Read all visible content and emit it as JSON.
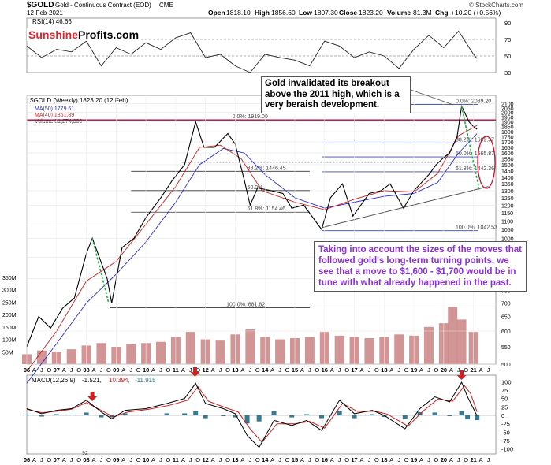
{
  "header": {
    "symbol": "$GOLD",
    "description": "Gold - Continuous Contract (EOD)",
    "exchange": "CME",
    "date": "12-Feb-2021",
    "ohlc_open_label": "Open",
    "ohlc_open": "1818.10",
    "ohlc_high_label": "High",
    "ohlc_high": "1856.60",
    "ohlc_low_label": "Low",
    "ohlc_low": "1807.30",
    "ohlc_close_label": "Close",
    "ohlc_close": "1823.20",
    "ohlc_volume_label": "Volume",
    "ohlc_volume": "81.3M",
    "ohlc_change_label": "Chg",
    "ohlc_change": "+10.20 (+0.56%)",
    "watermark": "© StockCharts.com"
  },
  "logo": {
    "part1": "Sunshine",
    "part2": "Profits.com"
  },
  "legend": {
    "price_title": "$GOLD (Weekly) 1823.20 (12 Feb)",
    "ma50": "MA(50) 1779.61",
    "ma40": "MA(40) 1861.89",
    "volume": "Volume 81,274,800",
    "rsi": "RSI(14) 46.66",
    "macd_label": "MACD(12,26,9)",
    "macd_v1": "-1.521,",
    "macd_v2": "10.394,",
    "macd_v3": "-11.915"
  },
  "annotations": {
    "top_box": "Gold invalidated its breakout above the 2011 high, which is a very beraish development.",
    "purple_box": "Taking into account the sizes of the moves that followed gold's long-term turning points, we see that a move to $1,600 - $1,700 would be in tune with what already happened in the past.",
    "macd_low_mark": "92"
  },
  "colors": {
    "price_line": "#000000",
    "ma50": "#2a2ad0",
    "ma40": "#cc1f1f",
    "resistance": "#b0003a",
    "fib_blue": "#3c4ba8",
    "fib_black": "#333333",
    "volume_bar": "#c98282",
    "volume_bar_dark": "#333333",
    "rsi_line": "#222222",
    "macd_line": "#000000",
    "macd_signal": "#cc1f1f",
    "macd_hist": "#1f6c8a",
    "arrow_red": "#cc2222",
    "green_dotted": "#22aa44",
    "ellipse": "#cc1133",
    "annotation_purple": "#8b2fd6"
  },
  "chart_data": [
    {
      "type": "line",
      "title": "RSI(14) 46.66",
      "y_ticks": [
        "90",
        "70",
        "50",
        "30"
      ],
      "ylim": [
        30,
        90
      ],
      "reference_lines": [
        70,
        50
      ],
      "series": [
        {
          "name": "RSI(14)",
          "x": [
            2006.0,
            2006.5,
            2007.0,
            2007.5,
            2008.0,
            2008.5,
            2009.0,
            2009.5,
            2010.0,
            2010.5,
            2011.0,
            2011.5,
            2012.0,
            2012.5,
            2013.0,
            2013.5,
            2014.0,
            2014.5,
            2015.0,
            2015.5,
            2016.0,
            2016.5,
            2017.0,
            2017.5,
            2018.0,
            2018.5,
            2019.0,
            2019.5,
            2020.0,
            2020.5,
            2021.0,
            2021.12
          ],
          "y": [
            62,
            48,
            58,
            55,
            68,
            38,
            60,
            52,
            66,
            58,
            72,
            78,
            48,
            52,
            38,
            30,
            52,
            48,
            45,
            38,
            68,
            62,
            48,
            55,
            50,
            35,
            58,
            75,
            60,
            80,
            52,
            47
          ]
        }
      ]
    },
    {
      "type": "line",
      "title": "$GOLD (Weekly) 1823.20 (12 Feb)",
      "y_ticks": [
        "2100",
        "2050",
        "2000",
        "1950",
        "1900",
        "1850",
        "1800",
        "1750",
        "1700",
        "1650",
        "1600",
        "1550",
        "1500",
        "1450",
        "1400",
        "1350",
        "1300",
        "1250",
        "1200",
        "1150",
        "1100",
        "1050",
        "1000",
        "950",
        "900",
        "850",
        "800",
        "750",
        "700",
        "650",
        "600",
        "550",
        "500"
      ],
      "y_scale": "log",
      "ylim": [
        500,
        2150
      ],
      "x_ticks": [
        "06",
        "A",
        "J",
        "O",
        "07",
        "A",
        "J",
        "O",
        "08",
        "A",
        "J",
        "O",
        "09",
        "A",
        "J",
        "O",
        "10",
        "A",
        "J",
        "O",
        "11",
        "A",
        "J",
        "O",
        "12",
        "A",
        "J",
        "O",
        "13",
        "A",
        "J",
        "O",
        "14",
        "A",
        "J",
        "O",
        "15",
        "A",
        "J",
        "O",
        "16",
        "A",
        "J",
        "O",
        "17",
        "A",
        "J",
        "O",
        "18",
        "A",
        "J",
        "O",
        "19",
        "A",
        "J",
        "O",
        "20",
        "A",
        "J",
        "O",
        "21",
        "A",
        "J",
        "O"
      ],
      "series": [
        {
          "name": "$GOLD",
          "x": [
            2006.0,
            2006.4,
            2006.8,
            2007.2,
            2007.6,
            2008.0,
            2008.2,
            2008.7,
            2008.85,
            2009.2,
            2009.6,
            2010.0,
            2010.5,
            2010.9,
            2011.3,
            2011.67,
            2011.95,
            2012.3,
            2012.75,
            2013.0,
            2013.3,
            2013.5,
            2013.75,
            2014.2,
            2014.6,
            2014.9,
            2015.3,
            2015.9,
            2016.2,
            2016.6,
            2016.95,
            2017.5,
            2017.9,
            2018.2,
            2018.65,
            2019.0,
            2019.5,
            2019.75,
            2020.0,
            2020.2,
            2020.45,
            2020.6,
            2020.85,
            2021.0,
            2021.12
          ],
          "y": [
            550,
            650,
            610,
            680,
            720,
            920,
            1000,
            800,
            700,
            950,
            1000,
            1120,
            1250,
            1380,
            1500,
            1900,
            1650,
            1650,
            1780,
            1680,
            1380,
            1200,
            1320,
            1300,
            1280,
            1180,
            1200,
            1050,
            1250,
            1350,
            1130,
            1280,
            1300,
            1350,
            1180,
            1300,
            1420,
            1500,
            1560,
            1600,
            1750,
            2070,
            1900,
            1850,
            1823
          ]
        },
        {
          "name": "MA(50) 1779.61",
          "x": [
            2006.0,
            2007.0,
            2008.0,
            2009.0,
            2010.0,
            2011.0,
            2011.8,
            2012.6,
            2013.3,
            2014.0,
            2015.0,
            2016.0,
            2017.0,
            2018.0,
            2019.0,
            2019.8,
            2020.5,
            2021.12
          ],
          "y": [
            450,
            560,
            700,
            820,
            980,
            1220,
            1500,
            1640,
            1600,
            1420,
            1250,
            1180,
            1220,
            1260,
            1280,
            1360,
            1600,
            1780
          ]
        },
        {
          "name": "MA(40) 1861.89",
          "x": [
            2006.0,
            2007.0,
            2008.0,
            2009.0,
            2010.0,
            2011.0,
            2011.8,
            2012.5,
            2013.2,
            2013.9,
            2015.0,
            2016.0,
            2017.0,
            2018.0,
            2019.0,
            2019.8,
            2020.5,
            2021.12
          ],
          "y": [
            480,
            600,
            790,
            880,
            1080,
            1330,
            1650,
            1670,
            1550,
            1300,
            1220,
            1170,
            1240,
            1300,
            1290,
            1430,
            1760,
            1862
          ]
        }
      ],
      "horizontal_levels": [
        {
          "label": "0.0%: 1919.00",
          "value": 1919
        },
        {
          "label": "0.0%: 2089.20",
          "value": 2089.2
        },
        {
          "label": "38.2%: 1689.37",
          "value": 1689.37
        },
        {
          "label": "50.0%: 1565.87",
          "value": 1565.87
        },
        {
          "label": "61.8%: 1442.36",
          "value": 1442.36
        },
        {
          "label": "100.0%: 1042.53",
          "value": 1042.53
        },
        {
          "label": "38.2%: 1446.45",
          "value": 1446.45
        },
        {
          "label": "50.0%",
          "value": 1300.41
        },
        {
          "label": "61.8%: 1154.46",
          "value": 1154.46
        },
        {
          "label": "100.0%: 681.82",
          "value": 681.82
        }
      ]
    },
    {
      "type": "bar",
      "title": "Volume 81,274,800",
      "y_ticks": [
        "350M",
        "300M",
        "250M",
        "200M",
        "150M",
        "100M",
        "50M"
      ],
      "ylim": [
        0,
        350
      ],
      "unit": "M",
      "x": [
        2006.0,
        2006.5,
        2007.0,
        2007.5,
        2008.0,
        2008.5,
        2009.0,
        2009.5,
        2010.0,
        2010.5,
        2011.0,
        2011.5,
        2012.0,
        2012.5,
        2013.0,
        2013.5,
        2014.0,
        2014.5,
        2015.0,
        2015.5,
        2016.0,
        2016.5,
        2017.0,
        2017.5,
        2018.0,
        2018.5,
        2019.0,
        2019.5,
        2020.0,
        2020.3,
        2020.6,
        2021.0
      ],
      "values": [
        40,
        55,
        50,
        60,
        75,
        85,
        70,
        80,
        85,
        90,
        110,
        130,
        100,
        95,
        120,
        140,
        110,
        100,
        105,
        110,
        130,
        115,
        110,
        105,
        110,
        120,
        115,
        150,
        165,
        230,
        180,
        130
      ]
    },
    {
      "type": "line",
      "title": "MACD(12,26,9) -1.521, 10.394, -11.915",
      "y_ticks": [
        "100",
        "75",
        "50",
        "25",
        "0",
        "-25",
        "-50",
        "-75",
        "-100"
      ],
      "ylim": [
        -110,
        110
      ],
      "series": [
        {
          "name": "MACD",
          "x": [
            2006.0,
            2006.5,
            2007.0,
            2007.5,
            2008.0,
            2008.5,
            2008.85,
            2009.3,
            2010.0,
            2010.7,
            2011.3,
            2011.67,
            2012.0,
            2012.6,
            2013.0,
            2013.4,
            2013.8,
            2014.3,
            2014.9,
            2015.4,
            2015.9,
            2016.5,
            2017.0,
            2017.6,
            2018.0,
            2018.7,
            2019.2,
            2019.7,
            2020.2,
            2020.6,
            2020.8,
            2021.12
          ],
          "y": [
            20,
            5,
            15,
            20,
            45,
            10,
            -10,
            15,
            20,
            35,
            50,
            95,
            35,
            20,
            5,
            -60,
            -95,
            -15,
            -30,
            -15,
            -45,
            45,
            5,
            15,
            0,
            -40,
            20,
            55,
            40,
            98,
            55,
            -1.5
          ]
        },
        {
          "name": "Signal",
          "x": [
            2006.0,
            2006.5,
            2007.0,
            2007.5,
            2008.0,
            2008.5,
            2008.9,
            2009.4,
            2010.1,
            2010.8,
            2011.4,
            2011.75,
            2012.1,
            2012.7,
            2013.1,
            2013.5,
            2013.9,
            2014.4,
            2015.0,
            2015.5,
            2016.0,
            2016.6,
            2017.1,
            2017.7,
            2018.1,
            2018.8,
            2019.3,
            2019.8,
            2020.3,
            2020.7,
            2020.9,
            2021.12
          ],
          "y": [
            18,
            8,
            12,
            18,
            38,
            15,
            -5,
            10,
            18,
            30,
            45,
            85,
            42,
            22,
            10,
            -40,
            -80,
            -25,
            -25,
            -18,
            -38,
            35,
            12,
            12,
            4,
            -32,
            12,
            48,
            42,
            88,
            65,
            10.4
          ]
        }
      ]
    }
  ]
}
